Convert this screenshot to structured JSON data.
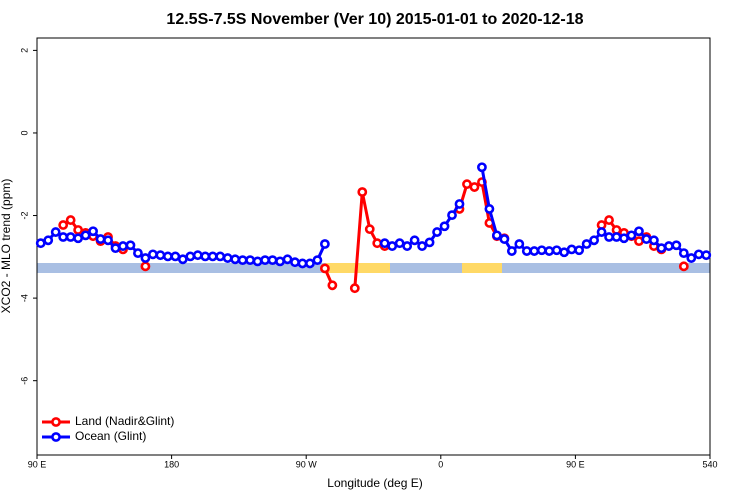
{
  "chart_data": {
    "type": "line",
    "title": "12.5S-7.5S November (Ver 10)   2015-01-01 to 2020-12-18",
    "x_label": "Longitude (deg E)",
    "y_label": "XCO2 - MLO trend (ppm)",
    "xlim": [
      90,
      540
    ],
    "ylim": [
      -7.8,
      2.3
    ],
    "xticks": [
      {
        "value": 90,
        "label": "90 E"
      },
      180,
      {
        "value": 270,
        "label": "90 W"
      },
      {
        "value": 360,
        "label": "0"
      },
      {
        "value": 450,
        "label": "90 E"
      },
      540
    ],
    "yticks": [
      -6,
      -4,
      -2,
      0,
      2
    ],
    "legend": "bottom-left",
    "x": [
      92.5,
      97.5,
      102.5,
      107.5,
      112.5,
      117.5,
      122.5,
      127.5,
      132.5,
      137.5,
      142.5,
      147.5,
      152.5,
      157.5,
      162.5,
      167.5,
      172.5,
      177.5,
      182.5,
      187.5,
      192.5,
      197.5,
      202.5,
      207.5,
      212.5,
      217.5,
      222.5,
      227.5,
      232.5,
      237.5,
      242.5,
      247.5,
      252.5,
      257.5,
      262.5,
      267.5,
      272.5,
      277.5,
      282.5,
      287.5,
      292.5,
      297.5,
      302.5,
      307.5,
      312.5,
      317.5,
      322.5,
      327.5,
      332.5,
      337.5,
      342.5,
      347.5,
      352.5,
      357.5,
      362.5,
      367.5,
      372.5,
      377.5,
      382.5,
      387.5,
      392.5,
      397.5,
      402.5,
      407.5,
      412.5,
      417.5,
      422.5,
      427.5,
      432.5,
      437.5,
      442.5,
      447.5,
      452.5,
      457.5,
      462.5,
      467.5,
      472.5,
      477.5,
      482.5,
      487.5,
      492.5,
      497.5,
      502.5,
      507.5,
      512.5,
      517.5,
      522.5,
      527.5,
      532.5,
      537.5
    ],
    "series": [
      {
        "name": "Land (Nadir&Glint)",
        "color": "#ff0000",
        "values": [
          null,
          null,
          null,
          -2.23,
          -2.11,
          -2.35,
          -2.42,
          -2.5,
          -2.62,
          -2.52,
          -2.74,
          -2.82,
          null,
          null,
          -3.23,
          null,
          null,
          null,
          null,
          null,
          null,
          null,
          null,
          null,
          null,
          null,
          null,
          null,
          null,
          null,
          null,
          null,
          null,
          null,
          null,
          null,
          null,
          null,
          -3.28,
          -3.69,
          null,
          null,
          -3.76,
          -1.43,
          -2.33,
          -2.67,
          -2.74,
          null,
          null,
          null,
          null,
          null,
          null,
          null,
          null,
          null,
          -1.84,
          -1.24,
          -1.31,
          -1.19,
          -2.18,
          -2.5,
          -2.55,
          null,
          null,
          null,
          null,
          null,
          null,
          null,
          null,
          null,
          null,
          null,
          null,
          -2.23,
          -2.11,
          -2.35,
          -2.42,
          -2.5,
          -2.62,
          -2.52,
          -2.74,
          -2.82,
          null,
          null,
          -3.23,
          null,
          null,
          null
        ]
      },
      {
        "name": "Ocean (Glint)",
        "color": "#0000ff",
        "values": [
          -2.67,
          -2.6,
          -2.4,
          -2.52,
          -2.52,
          -2.55,
          -2.48,
          -2.38,
          -2.57,
          -2.6,
          -2.79,
          -2.74,
          -2.72,
          -2.91,
          -3.03,
          -2.94,
          -2.96,
          -2.99,
          -2.99,
          -3.06,
          -2.99,
          -2.96,
          -2.99,
          -2.99,
          -2.99,
          -3.03,
          -3.06,
          -3.08,
          -3.08,
          -3.11,
          -3.08,
          -3.08,
          -3.11,
          -3.06,
          -3.13,
          -3.16,
          -3.16,
          -3.08,
          -2.69,
          null,
          null,
          null,
          null,
          null,
          null,
          null,
          -2.67,
          -2.74,
          -2.67,
          -2.74,
          -2.6,
          -2.74,
          -2.65,
          -2.4,
          -2.26,
          -1.99,
          -1.72,
          null,
          null,
          -0.83,
          -1.84,
          -2.48,
          -2.57,
          -2.86,
          -2.69,
          -2.86,
          -2.86,
          -2.84,
          -2.86,
          -2.84,
          -2.89,
          -2.82,
          -2.84,
          -2.69,
          -2.6,
          -2.4,
          -2.52,
          -2.52,
          -2.55,
          -2.48,
          -2.38,
          -2.57,
          -2.6,
          -2.79,
          -2.74,
          -2.72,
          -2.91,
          -3.03,
          -2.94,
          -2.96
        ]
      }
    ]
  }
}
